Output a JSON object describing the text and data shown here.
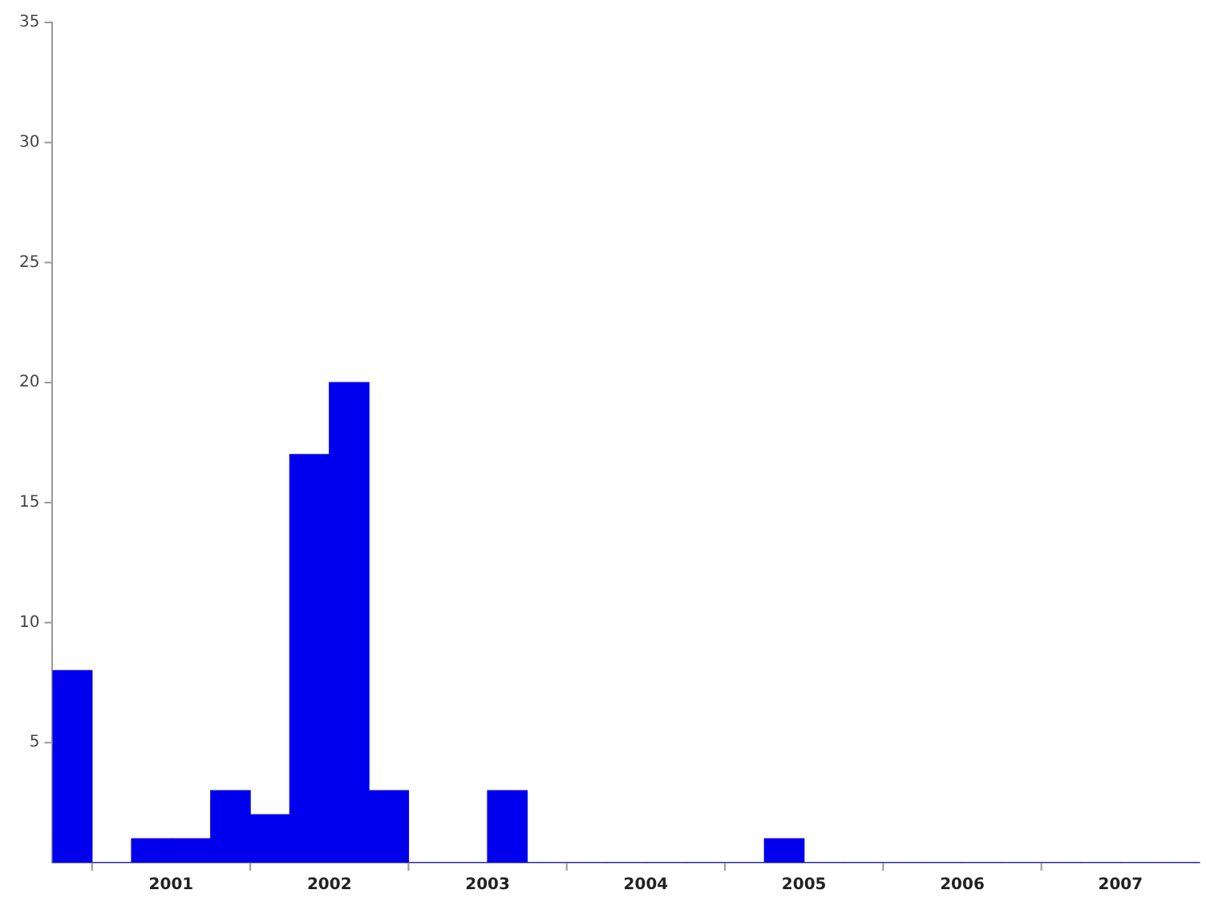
{
  "chart_data": {
    "type": "histogram",
    "color": "#0000ee",
    "bins": [
      2000.75,
      2001,
      2001.25,
      2001.5,
      2001.75,
      2002,
      2002.25,
      2002.5,
      2002.75,
      2003,
      2003.25,
      2003.5,
      2003.75,
      2004,
      2004.25,
      2004.5,
      2004.75,
      2005,
      2005.25,
      2005.5,
      2005.75,
      2006,
      2006.25,
      2006.5,
      2006.75,
      2007,
      2007.25,
      2007.5,
      2007.75,
      2008
    ],
    "values": [
      8,
      0,
      1,
      1,
      3,
      2,
      17,
      20,
      3,
      0,
      0,
      3,
      0,
      0,
      0,
      0,
      0,
      0,
      1,
      0,
      0,
      0,
      0,
      0,
      0,
      0,
      0,
      0,
      0
    ],
    "xlim": [
      2000.75,
      2008
    ],
    "xticks": [
      {
        "value": 2001,
        "label": null
      },
      {
        "value": 2001.5,
        "label": "2001"
      },
      {
        "value": 2002,
        "label": null
      },
      {
        "value": 2002.5,
        "label": "2002"
      },
      {
        "value": 2003,
        "label": null
      },
      {
        "value": 2003.5,
        "label": "2003"
      },
      {
        "value": 2004,
        "label": null
      },
      {
        "value": 2004.5,
        "label": "2004"
      },
      {
        "value": 2005,
        "label": null
      },
      {
        "value": 2005.5,
        "label": "2005"
      },
      {
        "value": 2006,
        "label": null
      },
      {
        "value": 2006.5,
        "label": "2006"
      },
      {
        "value": 2007,
        "label": null
      },
      {
        "value": 2007.5,
        "label": "2007"
      }
    ],
    "ylim": [
      0,
      35
    ],
    "yticks": [
      5,
      10,
      15,
      20,
      25,
      30,
      35
    ],
    "grid": false
  }
}
